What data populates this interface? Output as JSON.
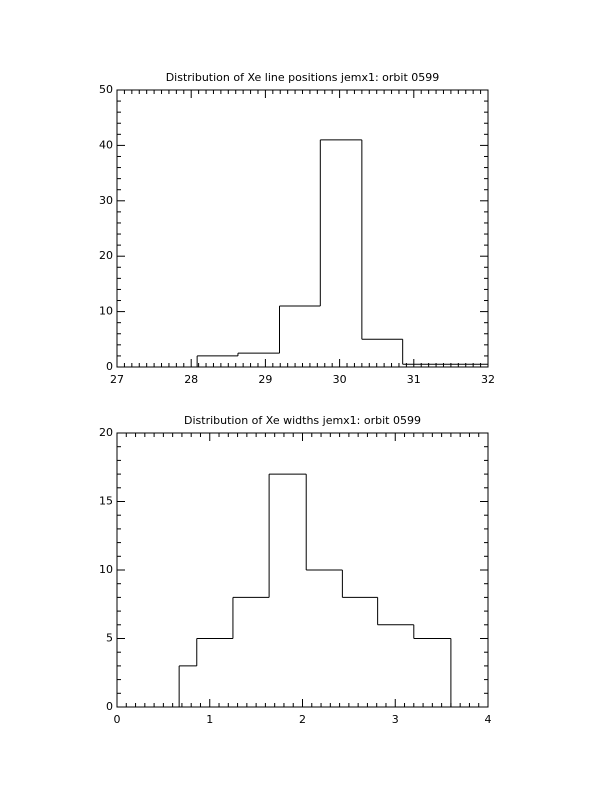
{
  "chart_data": [
    {
      "type": "histogram",
      "title": "Distribution of Xe line positions jemx1: orbit 0599",
      "bins": [
        28.08,
        28.63,
        29.19,
        29.74,
        30.3,
        30.85,
        32
      ],
      "values": [
        2,
        2.5,
        11,
        41,
        5,
        0.5
      ],
      "color": "#000000",
      "xlim": [
        27,
        32
      ],
      "xticks": [
        27,
        28,
        29,
        30,
        31,
        32
      ],
      "ylim": [
        0,
        50
      ],
      "yticks": [
        0,
        10,
        20,
        30,
        40,
        50
      ]
    },
    {
      "type": "histogram",
      "title": "Distribution of Xe widths jemx1: orbit 0599",
      "bins": [
        0.67,
        0.86,
        1.25,
        1.64,
        2.04,
        2.43,
        2.81,
        3.2,
        3.6
      ],
      "values": [
        3,
        5,
        8,
        17,
        10,
        8,
        6,
        5
      ],
      "color": "#000000",
      "xlim": [
        0,
        4
      ],
      "xticks": [
        0,
        1,
        2,
        3,
        4
      ],
      "ylim": [
        0,
        20
      ],
      "yticks": [
        0,
        5,
        10,
        15,
        20
      ]
    }
  ]
}
